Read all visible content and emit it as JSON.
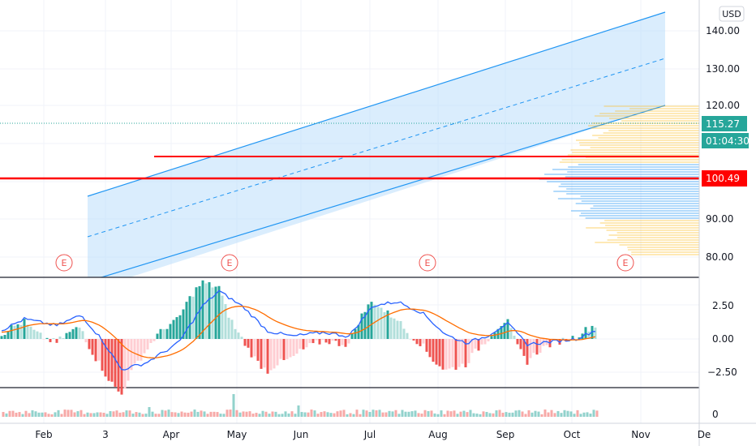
{
  "currency": "USD",
  "price_axis": {
    "ticks": [
      "140.00",
      "130.00",
      "120.00",
      "100.49",
      "90.00",
      "80.00"
    ],
    "tick_values": [
      140,
      130,
      120,
      100.49,
      90,
      80
    ]
  },
  "badges": {
    "last_price": {
      "label": "115.27",
      "value": 115.27,
      "color": "#26a69a"
    },
    "countdown": {
      "label": "01:04:30",
      "color": "#26a69a"
    },
    "support": {
      "label": "100.49",
      "value": 100.49,
      "color": "#ff0000"
    }
  },
  "earnings_markers": [
    "E",
    "E",
    "E",
    "E"
  ],
  "macd_axis": {
    "ticks": [
      "2.50",
      "0.00",
      "−2.50"
    ],
    "tick_values": [
      2.5,
      0,
      -2.5
    ]
  },
  "volume_axis": {
    "ticks": [
      "0"
    ]
  },
  "time_axis": {
    "labels": [
      "Feb",
      "3",
      "Apr",
      "May",
      "Jun",
      "Jul",
      "Aug",
      "Sep",
      "Oct",
      "Nov",
      "De"
    ]
  },
  "colors": {
    "up": "#26a69a",
    "down": "#ef5350",
    "channel": "#2196f3",
    "macd": "#2962ff",
    "signal": "#ff6d00",
    "support": "#ff0000"
  },
  "chart_data": {
    "type": "candlestick",
    "y_range": [
      76,
      146
    ],
    "horizontal_lines": [
      100.49,
      106
    ],
    "last_price": 115.27
  }
}
